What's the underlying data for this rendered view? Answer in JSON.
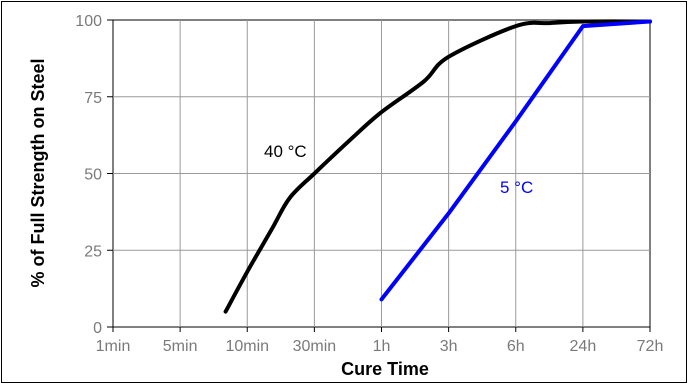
{
  "chart_data": {
    "type": "line",
    "xlabel": "Cure Time",
    "ylabel": "% of Full Strength on Steel",
    "x_tick_labels": [
      "1min",
      "5min",
      "10min",
      "30min",
      "1h",
      "3h",
      "6h",
      "24h",
      "72h"
    ],
    "y_tick_labels": [
      "0",
      "25",
      "50",
      "75",
      "100"
    ],
    "ylim": [
      0,
      100
    ],
    "grid": true,
    "series": [
      {
        "name": "40 °C",
        "color": "#000000",
        "points": [
          {
            "x": "8min",
            "y": 5
          },
          {
            "x": "10min",
            "y": 18
          },
          {
            "x": "15min",
            "y": 32
          },
          {
            "x": "20min",
            "y": 42
          },
          {
            "x": "30min",
            "y": 50
          },
          {
            "x": "45min",
            "y": 62
          },
          {
            "x": "1h",
            "y": 70
          },
          {
            "x": "2h",
            "y": 80
          },
          {
            "x": "3h",
            "y": 88
          },
          {
            "x": "6h",
            "y": 98
          },
          {
            "x": "12h",
            "y": 99
          },
          {
            "x": "24h",
            "y": 99.5
          },
          {
            "x": "72h",
            "y": 99.5
          }
        ]
      },
      {
        "name": "5 °C",
        "color": "#0000ff",
        "points": [
          {
            "x": "1h",
            "y": 9
          },
          {
            "x": "3h",
            "y": 37
          },
          {
            "x": "6h",
            "y": 67
          },
          {
            "x": "24h",
            "y": 98
          },
          {
            "x": "72h",
            "y": 99.5
          }
        ]
      }
    ]
  }
}
